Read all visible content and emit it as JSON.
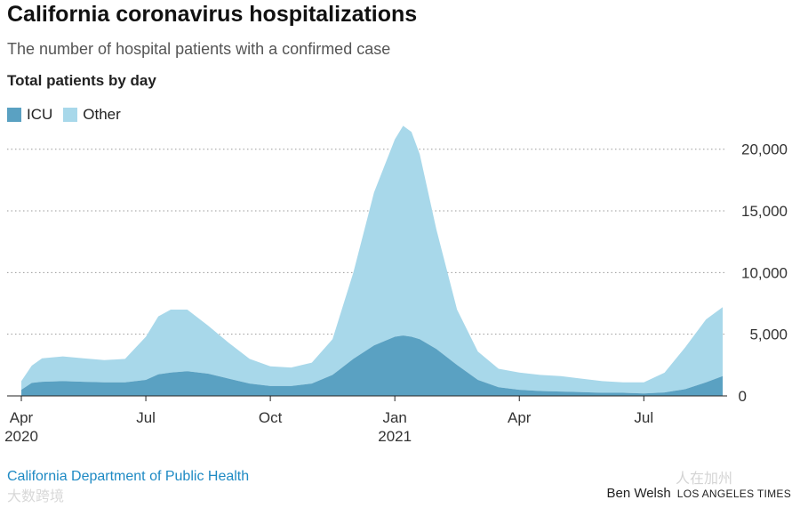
{
  "header": {
    "title": "California coronavirus hospitalizations",
    "subtitle": "The number of hospital patients with a confirmed case",
    "label": "Total patients by day"
  },
  "legend": [
    {
      "name": "ICU",
      "color": "#5aa1c2"
    },
    {
      "name": "Other",
      "color": "#a8d8ea"
    }
  ],
  "footer": {
    "source": "California Department of Public Health",
    "author": "Ben Welsh",
    "publisher": "LOS ANGELES TIMES"
  },
  "watermarks": {
    "wechat": "人在加州",
    "brand": "大数跨境"
  },
  "chart_data": {
    "type": "area",
    "stacked": true,
    "title": "California coronavirus hospitalizations",
    "ylabel": "Total patients by day",
    "ylim": [
      0,
      22000
    ],
    "yticks": [
      {
        "value": 5000,
        "label": "5,000"
      },
      {
        "value": 10000,
        "label": "10,000"
      },
      {
        "value": 15000,
        "label": "15,000"
      },
      {
        "value": 20000,
        "label": "20,000"
      }
    ],
    "zero_label": "0",
    "xlim": [
      0,
      16.9
    ],
    "xticks": [
      {
        "value": 0,
        "label": "Apr",
        "sub": "2020"
      },
      {
        "value": 3,
        "label": "Jul",
        "sub": ""
      },
      {
        "value": 6,
        "label": "Oct",
        "sub": ""
      },
      {
        "value": 9,
        "label": "Jan",
        "sub": "2021"
      },
      {
        "value": 12,
        "label": "Apr",
        "sub": ""
      },
      {
        "value": 15,
        "label": "Jul",
        "sub": ""
      }
    ],
    "x": [
      0,
      0.25,
      0.5,
      1,
      1.5,
      2,
      2.5,
      3,
      3.3,
      3.6,
      4,
      4.5,
      5,
      5.5,
      6,
      6.5,
      7,
      7.5,
      8,
      8.5,
      9,
      9.2,
      9.4,
      9.6,
      10,
      10.5,
      11,
      11.5,
      12,
      12.5,
      13,
      13.5,
      14,
      14.5,
      15,
      15.5,
      16,
      16.5,
      16.9
    ],
    "series": [
      {
        "name": "ICU",
        "values": [
          500,
          1050,
          1150,
          1200,
          1150,
          1100,
          1100,
          1300,
          1750,
          1900,
          2000,
          1800,
          1400,
          1000,
          800,
          800,
          1000,
          1700,
          3000,
          4100,
          4800,
          4900,
          4800,
          4600,
          3800,
          2500,
          1300,
          700,
          500,
          400,
          350,
          300,
          250,
          250,
          200,
          280,
          550,
          1100,
          1600
        ]
      },
      {
        "name": "Other",
        "values": [
          700,
          1400,
          1900,
          2000,
          1900,
          1800,
          1900,
          3500,
          4700,
          5100,
          5000,
          3900,
          2900,
          2000,
          1600,
          1500,
          1700,
          2900,
          7000,
          12400,
          16000,
          17000,
          16600,
          15000,
          9700,
          4500,
          2300,
          1500,
          1400,
          1300,
          1250,
          1100,
          950,
          850,
          900,
          1600,
          3400,
          5100,
          5600
        ]
      }
    ]
  }
}
